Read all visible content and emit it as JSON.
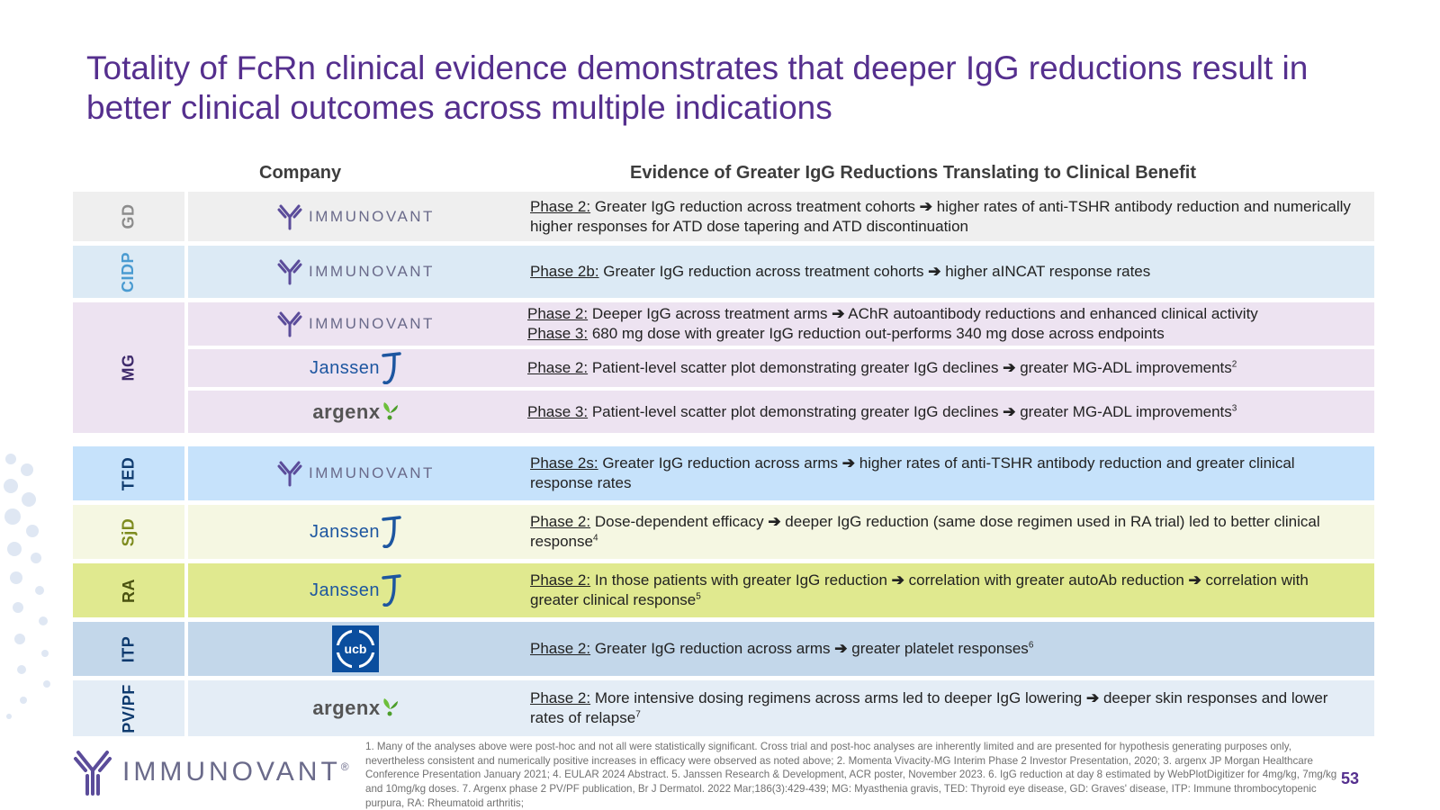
{
  "title": "Totality of FcRn clinical evidence demonstrates that deeper IgG reductions result in better clinical outcomes across multiple indications",
  "headers": {
    "company": "Company",
    "evidence": "Evidence of Greater IgG Reductions Translating to Clinical Benefit"
  },
  "logos": {
    "immunovant": "IMMUNOVANT",
    "janssen": "Janssen",
    "argenx": "argenx",
    "ucb": "ucb",
    "footer": "IMMUNOVANT",
    "footer_reg": "®"
  },
  "rows": [
    {
      "indication": "GD",
      "company": "IMMUNOVANT",
      "phase": "Phase 2:",
      "text": " Greater IgG reduction across treatment cohorts ",
      "arrow": "➔",
      "text2": " higher rates of anti-TSHR antibody reduction and numerically higher responses for ATD dose tapering and ATD discontinuation",
      "colors": {
        "bg": "#efefef",
        "label": "#8c8c8c"
      }
    },
    {
      "indication": "CIDP",
      "company": "IMMUNOVANT",
      "phase": "Phase 2b:",
      "text": " Greater IgG reduction across treatment cohorts ",
      "arrow": "➔",
      "text2": " higher aINCAT response rates",
      "colors": {
        "bg": "#dceaf5",
        "label": "#4a9bd1"
      }
    },
    {
      "indication": "MG",
      "colors": {
        "bg": "#ede3f1",
        "label": "#3e2a6b"
      },
      "subrows": [
        {
          "company": "IMMUNOVANT",
          "line1_phase": "Phase 2:",
          "line1_text": " Deeper IgG across treatment arms ",
          "line1_arrow": "➔",
          "line1_text2": " AChR autoantibody reductions and enhanced clinical activity",
          "line2_phase": "Phase 3:",
          "line2_text": " 680 mg dose with greater IgG reduction out-performs 340 mg dose across endpoints"
        },
        {
          "company": "Janssen",
          "phase": "Phase 2:",
          "text": " Patient-level scatter plot demonstrating greater IgG declines ",
          "arrow": "➔",
          "text2": " greater MG-ADL improvements",
          "sup": "2"
        },
        {
          "company": "argenx",
          "phase": "Phase 3:",
          "text": " Patient-level scatter plot demonstrating greater IgG declines ",
          "arrow": "➔",
          "text2": " greater MG-ADL improvements",
          "sup": "3"
        }
      ]
    },
    {
      "indication": "TED",
      "company": "IMMUNOVANT",
      "phase": "Phase 2s:",
      "text": " Greater IgG reduction across arms ",
      "arrow": "➔",
      "text2": " higher rates of anti-TSHR antibody reduction and greater clinical response rates",
      "colors": {
        "bg": "#c6e2fb",
        "label": "#0e3a6e"
      }
    },
    {
      "indication": "SjD",
      "company": "Janssen",
      "phase": "Phase 2:",
      "text": " Dose-dependent efficacy ",
      "arrow": "➔",
      "text2": " deeper IgG reduction (same dose regimen used in RA trial) led to better clinical response",
      "sup": "4",
      "colors": {
        "bg": "#f5f7e2",
        "label": "#7d8b1e"
      }
    },
    {
      "indication": "RA",
      "company": "Janssen",
      "phase": "Phase 2:",
      "text": " In those patients with greater IgG reduction ",
      "arrow": "➔",
      "text2": " correlation with greater autoAb reduction ",
      "arrow2": "➔",
      "text3": " correlation with greater clinical response",
      "sup": "5",
      "colors": {
        "bg": "#e0e98f",
        "label": "#4a5210"
      }
    },
    {
      "indication": "ITP",
      "company": "ucb",
      "phase": "Phase 2:",
      "text": " Greater IgG reduction across arms ",
      "arrow": "➔",
      "text2": " greater platelet responses",
      "sup": "6",
      "colors": {
        "bg": "#c3d7ea",
        "label": "#0e3a6e"
      }
    },
    {
      "indication": "PV/PF",
      "company": "argenx",
      "phase": "Phase 2:",
      "text": " More intensive dosing regimens across arms led to deeper IgG lowering ",
      "arrow": "➔",
      "text2": " deeper skin responses and lower rates of relapse",
      "sup": "7",
      "colors": {
        "bg": "#e4edf6",
        "label": "#0e3a6e"
      }
    }
  ],
  "footnote": "1. Many of the analyses above were post-hoc and not all were statistically significant. Cross trial and post-hoc analyses are inherently limited and are presented for hypothesis generating purposes only, nevertheless consistent and numerically positive increases in efficacy were observed as noted above; 2. Momenta Vivacity-MG Interim Phase 2 Investor Presentation, 2020; 3. argenx JP Morgan Healthcare Conference Presentation January 2021; 4. EULAR 2024 Abstract. 5. Janssen Research & Development, ACR poster, November 2023. 6. IgG reduction at day 8 estimated by WebPlotDigitizer for 4mg/kg, 7mg/kg and 10mg/kg doses. 7. Argenx phase 2 PV/PF publication, Br J Dermatol. 2022 Mar;186(3):429-439; MG: Myasthenia gravis, TED: Thyroid eye disease, GD: Graves' disease, ITP: Immune thrombocytopenic purpura, RA: Rheumatoid arthritis;",
  "page_number": "53",
  "accent_color": "#552f8e"
}
